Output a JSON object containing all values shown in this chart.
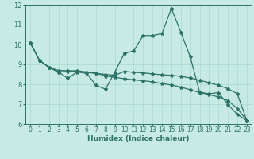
{
  "xlabel": "Humidex (Indice chaleur)",
  "bg_color": "#c8eae4",
  "line_color": "#2d7268",
  "grid_color": "#a8d8d0",
  "spine_color": "#2d7268",
  "xlim": [
    -0.5,
    23.5
  ],
  "ylim": [
    6,
    12
  ],
  "xticks": [
    0,
    1,
    2,
    3,
    4,
    5,
    6,
    7,
    8,
    9,
    10,
    11,
    12,
    13,
    14,
    15,
    16,
    17,
    18,
    19,
    20,
    21,
    22,
    23
  ],
  "yticks": [
    6,
    7,
    8,
    9,
    10,
    11,
    12
  ],
  "curve1_x": [
    0,
    1,
    2,
    3,
    4,
    5,
    6,
    7,
    8,
    9,
    10,
    11,
    12,
    13,
    14,
    15,
    16,
    17,
    18,
    19,
    20,
    21,
    22,
    23
  ],
  "curve1_y": [
    10.1,
    9.2,
    8.85,
    8.62,
    8.3,
    8.62,
    8.55,
    7.95,
    7.75,
    8.62,
    9.55,
    9.68,
    10.45,
    10.45,
    10.55,
    11.82,
    10.62,
    9.38,
    7.6,
    7.52,
    7.58,
    6.98,
    6.48,
    6.18
  ],
  "curve2_x": [
    0,
    1,
    2,
    3,
    4,
    5,
    6,
    7,
    8,
    9,
    10,
    11,
    12,
    13,
    14,
    15,
    16,
    17,
    18,
    19,
    20,
    21,
    22,
    23
  ],
  "curve2_y": [
    10.1,
    9.2,
    8.85,
    8.7,
    8.68,
    8.68,
    8.62,
    8.56,
    8.42,
    8.35,
    8.28,
    8.22,
    8.18,
    8.12,
    8.04,
    7.96,
    7.86,
    7.72,
    7.58,
    7.48,
    7.36,
    7.18,
    6.78,
    6.18
  ],
  "curve3_x": [
    0,
    1,
    2,
    3,
    4,
    5,
    6,
    7,
    8,
    9,
    10,
    11,
    12,
    13,
    14,
    15,
    16,
    17,
    18,
    19,
    20,
    21,
    22,
    23
  ],
  "curve3_y": [
    10.1,
    9.2,
    8.85,
    8.62,
    8.65,
    8.65,
    8.6,
    8.55,
    8.5,
    8.45,
    8.65,
    8.6,
    8.58,
    8.52,
    8.48,
    8.45,
    8.4,
    8.32,
    8.2,
    8.08,
    7.95,
    7.78,
    7.52,
    6.18
  ],
  "xlabel_fontsize": 6.5,
  "tick_fontsize": 5.5
}
